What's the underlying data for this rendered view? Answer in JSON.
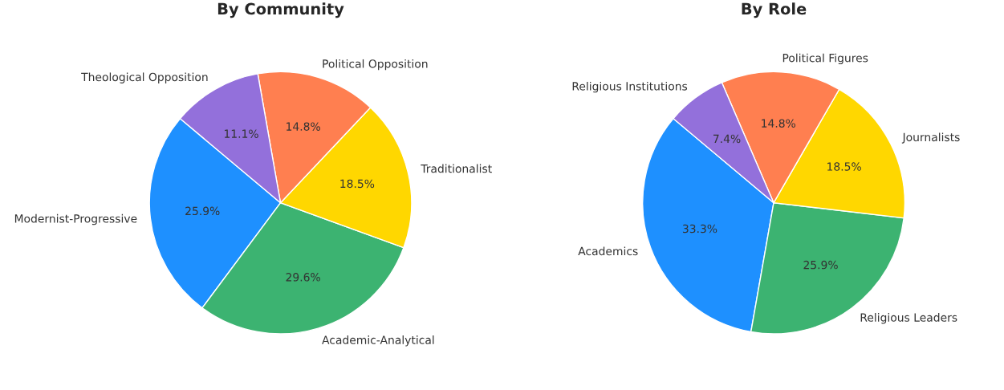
{
  "chart_data": [
    {
      "type": "pie",
      "title": "By Community",
      "categories": [
        "Modernist-Progressive",
        "Academic-Analytical",
        "Traditionalist",
        "Political Opposition",
        "Theological Opposition"
      ],
      "values": [
        25.9,
        29.6,
        18.5,
        14.8,
        11.1
      ],
      "value_labels": [
        "25.9%",
        "29.6%",
        "18.5%",
        "14.8%",
        "11.1%"
      ],
      "colors": [
        "#1e90ff",
        "#3cb371",
        "#ffd700",
        "#ff7f50",
        "#9370db"
      ]
    },
    {
      "type": "pie",
      "title": "By Role",
      "categories": [
        "Academics",
        "Religious Leaders",
        "Journalists",
        "Political Figures",
        "Religious Institutions"
      ],
      "values": [
        33.3,
        25.9,
        18.5,
        14.8,
        7.4
      ],
      "value_labels": [
        "33.3%",
        "25.9%",
        "18.5%",
        "14.8%",
        "7.4%"
      ],
      "colors": [
        "#1e90ff",
        "#3cb371",
        "#ffd700",
        "#ff7f50",
        "#9370db"
      ]
    }
  ]
}
